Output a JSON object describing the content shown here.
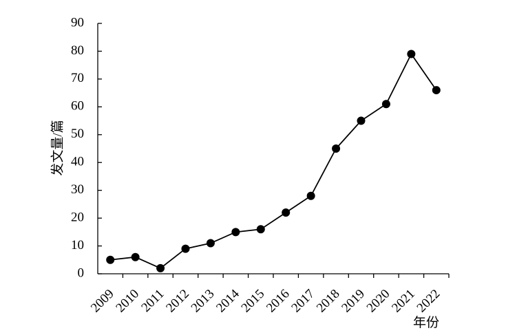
{
  "chart_data": {
    "type": "line",
    "x_label": "年份",
    "y_label": "发文量/篇",
    "categories": [
      "2009",
      "2010",
      "2011",
      "2012",
      "2013",
      "2014",
      "2015",
      "2016",
      "2017",
      "2018",
      "2019",
      "2020",
      "2021",
      "2022"
    ],
    "series": [
      {
        "name": "发文量",
        "color": "#000000",
        "values": [
          5,
          6,
          2,
          9,
          11,
          15,
          16,
          22,
          28,
          45,
          55,
          61,
          79,
          66
        ]
      }
    ],
    "ylim": [
      0,
      90
    ],
    "yticks": [
      0,
      10,
      20,
      30,
      40,
      50,
      60,
      70,
      80,
      90
    ],
    "grid": false
  }
}
